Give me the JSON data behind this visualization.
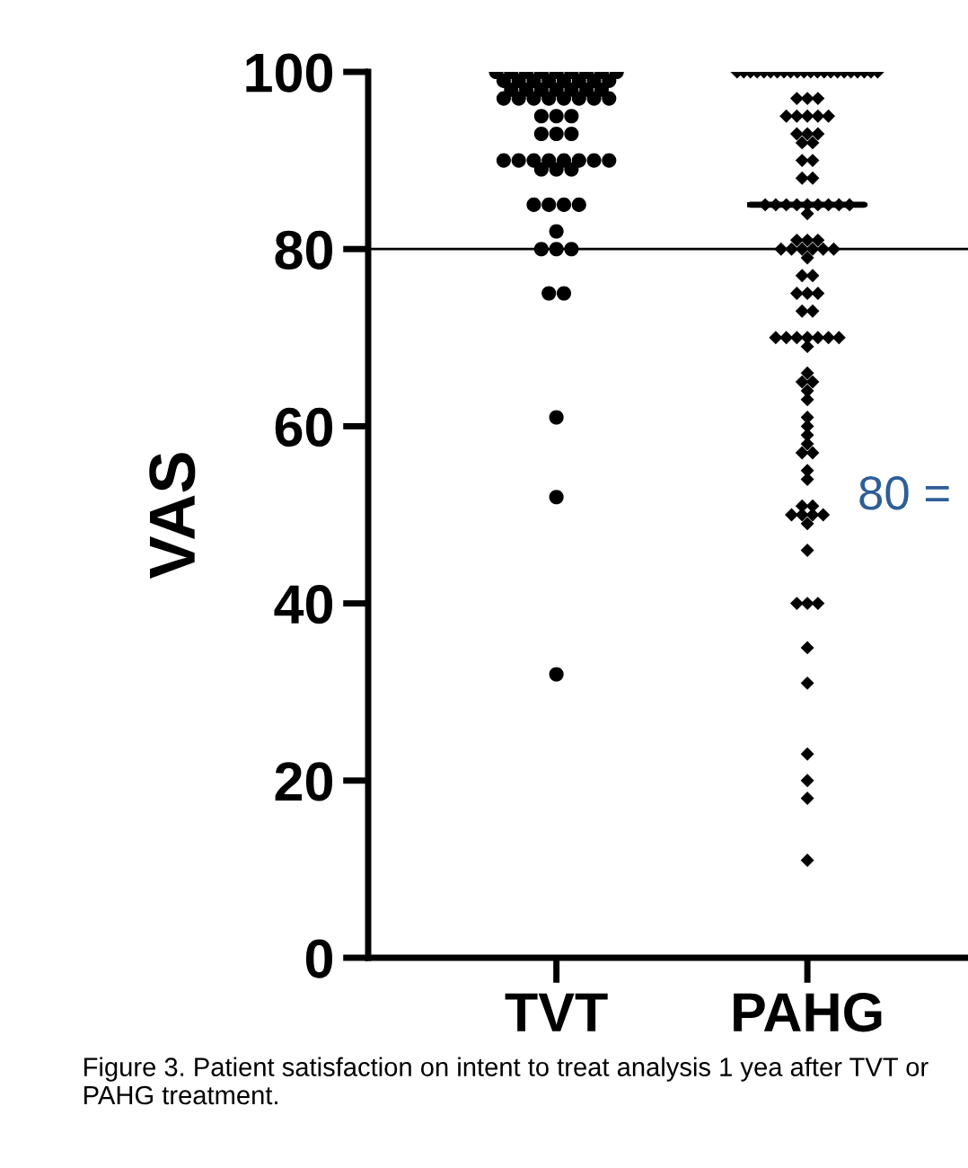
{
  "chart_data": {
    "type": "scatter",
    "ylabel": "VAS",
    "categories": [
      "TVT",
      "PAHG"
    ],
    "ylim": [
      0,
      100
    ],
    "yticks": [
      0,
      20,
      40,
      60,
      80,
      100
    ],
    "grid": false,
    "legend": false,
    "series": [
      {
        "color": "#000000",
        "marker": "circle",
        "x": [
          "TVT",
          "TVT",
          "TVT",
          "TVT",
          "TVT",
          "TVT",
          "TVT",
          "TVT",
          "TVT",
          "TVT",
          "TVT",
          "TVT",
          "TVT",
          "TVT",
          "TVT",
          "TVT",
          "TVT",
          "TVT",
          "TVT",
          "TVT",
          "TVT",
          "TVT",
          "TVT",
          "TVT",
          "TVT",
          "TVT",
          "TVT",
          "TVT",
          "TVT",
          "TVT",
          "TVT",
          "TVT",
          "TVT",
          "TVT",
          "TVT",
          "TVT",
          "TVT",
          "TVT",
          "TVT",
          "TVT",
          "TVT",
          "TVT",
          "TVT",
          "TVT",
          "TVT",
          "TVT",
          "TVT",
          "TVT",
          "TVT",
          "TVT",
          "TVT",
          "TVT",
          "TVT",
          "TVT",
          "TVT",
          "TVT",
          "TVT",
          "TVT",
          "TVT",
          "TVT",
          "TVT",
          "TVT"
        ],
        "values": [
          100,
          100,
          100,
          100,
          100,
          100,
          100,
          100,
          100,
          99,
          99,
          99,
          99,
          99,
          99,
          99,
          99,
          98,
          98,
          98,
          98,
          98,
          98,
          98,
          97,
          97,
          97,
          97,
          97,
          97,
          97,
          97,
          95,
          95,
          95,
          93,
          93,
          93,
          90,
          90,
          90,
          90,
          90,
          90,
          90,
          90,
          89,
          89,
          89,
          85,
          85,
          85,
          85,
          82,
          80,
          80,
          80,
          75,
          75,
          61,
          52,
          32
        ]
      },
      {
        "color": "#000000",
        "marker": "diamond",
        "x": [
          "PAHG",
          "PAHG",
          "PAHG",
          "PAHG",
          "PAHG",
          "PAHG",
          "PAHG",
          "PAHG",
          "PAHG",
          "PAHG",
          "PAHG",
          "PAHG",
          "PAHG",
          "PAHG",
          "PAHG",
          "PAHG",
          "PAHG",
          "PAHG",
          "PAHG",
          "PAHG",
          "PAHG",
          "PAHG",
          "PAHG",
          "PAHG",
          "PAHG",
          "PAHG",
          "PAHG",
          "PAHG",
          "PAHG",
          "PAHG",
          "PAHG",
          "PAHG",
          "PAHG",
          "PAHG",
          "PAHG",
          "PAHG",
          "PAHG",
          "PAHG",
          "PAHG",
          "PAHG",
          "PAHG",
          "PAHG",
          "PAHG",
          "PAHG",
          "PAHG",
          "PAHG",
          "PAHG",
          "PAHG",
          "PAHG",
          "PAHG",
          "PAHG",
          "PAHG",
          "PAHG",
          "PAHG",
          "PAHG",
          "PAHG",
          "PAHG",
          "PAHG",
          "PAHG",
          "PAHG",
          "PAHG",
          "PAHG",
          "PAHG",
          "PAHG",
          "PAHG",
          "PAHG",
          "PAHG",
          "PAHG",
          "PAHG",
          "PAHG",
          "PAHG",
          "PAHG",
          "PAHG",
          "PAHG",
          "PAHG",
          "PAHG",
          "PAHG",
          "PAHG",
          "PAHG",
          "PAHG",
          "PAHG",
          "PAHG",
          "PAHG",
          "PAHG",
          "PAHG",
          "PAHG",
          "PAHG",
          "PAHG",
          "PAHG",
          "PAHG",
          "PAHG",
          "PAHG",
          "PAHG",
          "PAHG",
          "PAHG",
          "PAHG",
          "PAHG",
          "PAHG",
          "PAHG",
          "PAHG",
          "PAHG",
          "PAHG",
          "PAHG",
          "PAHG"
        ],
        "values": [
          100,
          100,
          100,
          100,
          100,
          100,
          100,
          100,
          100,
          100,
          100,
          100,
          100,
          100,
          100,
          100,
          100,
          100,
          100,
          100,
          100,
          100,
          97,
          97,
          97,
          95,
          95,
          95,
          95,
          95,
          93,
          93,
          93,
          92,
          92,
          90,
          90,
          88,
          88,
          85,
          85,
          85,
          85,
          85,
          85,
          85,
          85,
          85,
          84,
          81,
          81,
          81,
          80,
          80,
          80,
          80,
          80,
          80,
          79,
          77,
          77,
          75,
          75,
          75,
          73,
          73,
          70,
          70,
          70,
          70,
          70,
          70,
          70,
          69,
          66,
          65,
          65,
          63,
          61,
          60,
          59,
          58,
          57,
          57,
          55,
          54,
          51,
          51,
          50,
          50,
          50,
          50,
          49,
          46,
          40,
          40,
          40,
          35,
          31,
          23,
          20,
          18,
          11,
          64
        ]
      },
      {
        "type": "box",
        "color": "#000000",
        "boxes": [
          null,
          {
            "low": 85,
            "q1": 85,
            "median": 85,
            "q3": 85,
            "high": 85
          }
        ]
      }
    ],
    "ref_lines": [
      {
        "axis": "y",
        "value": 80,
        "color": "#000000"
      }
    ],
    "annotations": [
      "80 =",
      "Figure 3. Patient satisfaction on intent to treat analysis 1 yea after TVT or PAHG treatment."
    ]
  }
}
